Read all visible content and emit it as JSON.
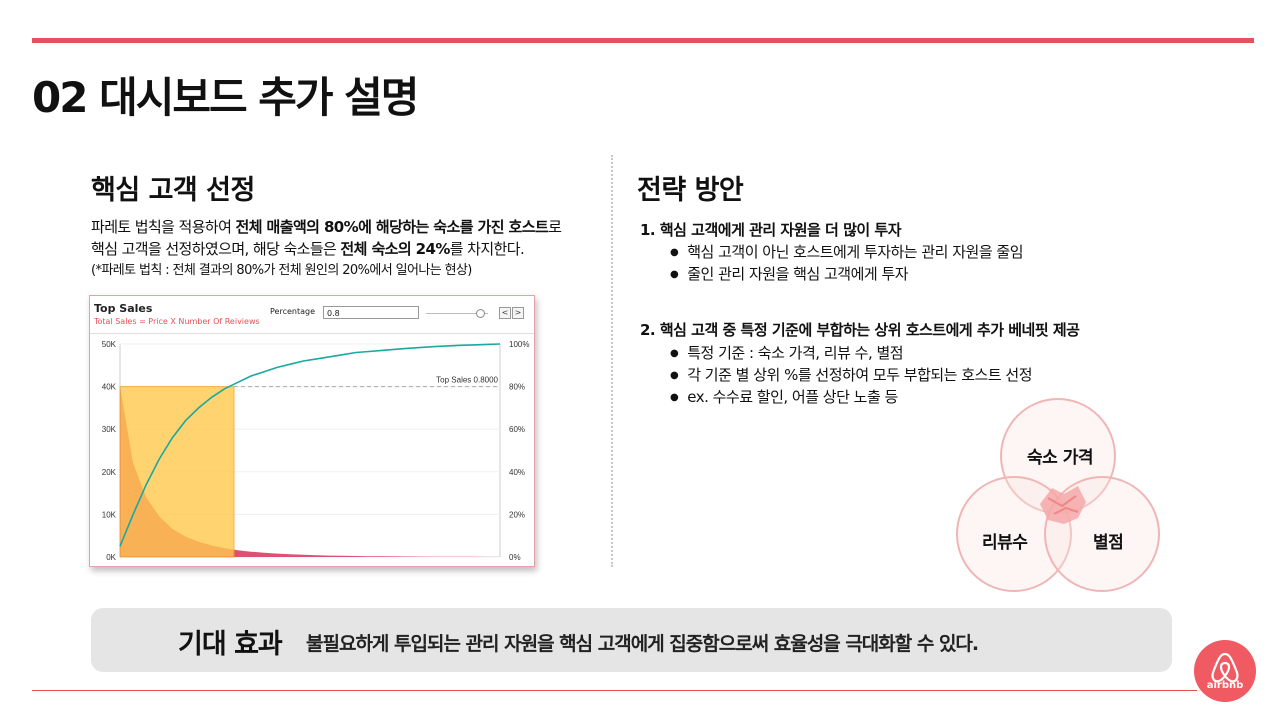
{
  "header": {
    "title": "02 대시보드 추가 설명"
  },
  "left": {
    "heading": "핵심 고객 선정",
    "para_line1_a": "파레토 법칙을 적용하여 ",
    "para_line1_b": "전체 매출액의 80%에 해당하는 숙소를 가진 호스트",
    "para_line1_c": "로",
    "para_line2_a": "핵심 고객을 선정하였으며, 해당 숙소들은 ",
    "para_line2_b": "전체 숙소의 24%",
    "para_line2_c": "를 차지한다.",
    "note": "(*파레토 법칙 : 전체 결과의 80%가 전체 원인의 20%에서 일어나는 현상)"
  },
  "dashboard": {
    "title": "Top Sales",
    "subtitle": "Total Sales = Price X Number Of Reiviews",
    "percentage_label": "Percentage",
    "percentage_value": "0.8",
    "prev_btn": "<",
    "next_btn": ">",
    "ref_label": "Top Sales 0.8000"
  },
  "chart_data": {
    "type": "area",
    "left_axis_ticks": [
      "50K",
      "40K",
      "30K",
      "20K",
      "10K",
      "0K"
    ],
    "right_axis_ticks": [
      "100%",
      "80%",
      "60%",
      "40%",
      "20%",
      "0%"
    ],
    "ylim_left": [
      0,
      50000
    ],
    "ylim_right": [
      0,
      1
    ],
    "reference_line": 0.8,
    "highlight_range_fraction": [
      0,
      0.3
    ],
    "series": [
      {
        "values": [
          40000,
          22000,
          14000,
          9500,
          6600,
          4800,
          3600,
          2700,
          2050,
          1600,
          1250,
          1000,
          800,
          640,
          520,
          420,
          340,
          280,
          230,
          190,
          160,
          130,
          110,
          90,
          75,
          60,
          50,
          40,
          30,
          20
        ]
      },
      {
        "values": [
          0.05,
          0.2,
          0.34,
          0.46,
          0.56,
          0.64,
          0.7,
          0.75,
          0.79,
          0.82,
          0.85,
          0.87,
          0.89,
          0.905,
          0.92,
          0.93,
          0.94,
          0.95,
          0.96,
          0.965,
          0.97,
          0.975,
          0.98,
          0.984,
          0.988,
          0.991,
          0.994,
          0.996,
          0.998,
          1.0
        ]
      }
    ]
  },
  "right": {
    "heading": "전략 방안",
    "item1": "1. 핵심 고객에게 관리 자원을 더 많이 투자",
    "item1_bullets": [
      "핵심 고객이 아닌 호스트에게 투자하는 관리 자원을 줄임",
      "줄인 관리 자원을 핵심 고객에게 투자"
    ],
    "item2": "2. 핵심 고객 중 특정 기준에 부합하는 상위 호스트에게 추가 베네핏 제공",
    "item2_bullets": [
      "특정 기준 : 숙소 가격, 리뷰 수, 별점",
      "각 기준 별 상위 %를 선정하여 모두 부합되는 호스트 선정",
      "ex. 수수료 할인, 어플 상단 노출 등"
    ]
  },
  "venn": {
    "top": "숙소 가격",
    "left": "리뷰수",
    "right": "별점"
  },
  "footer": {
    "effect_title": "기대 효과",
    "effect_text": "불필요하게 투입되는 관리 자원을 핵심 고객에게 집중함으로써 효율성을 극대화할 수 있다.",
    "logo_text": "airbnb"
  },
  "colors": {
    "accent": "#e8505b",
    "highlight": "#ffc94d",
    "line": "#1aa9a0",
    "bar": "#d9335a"
  }
}
